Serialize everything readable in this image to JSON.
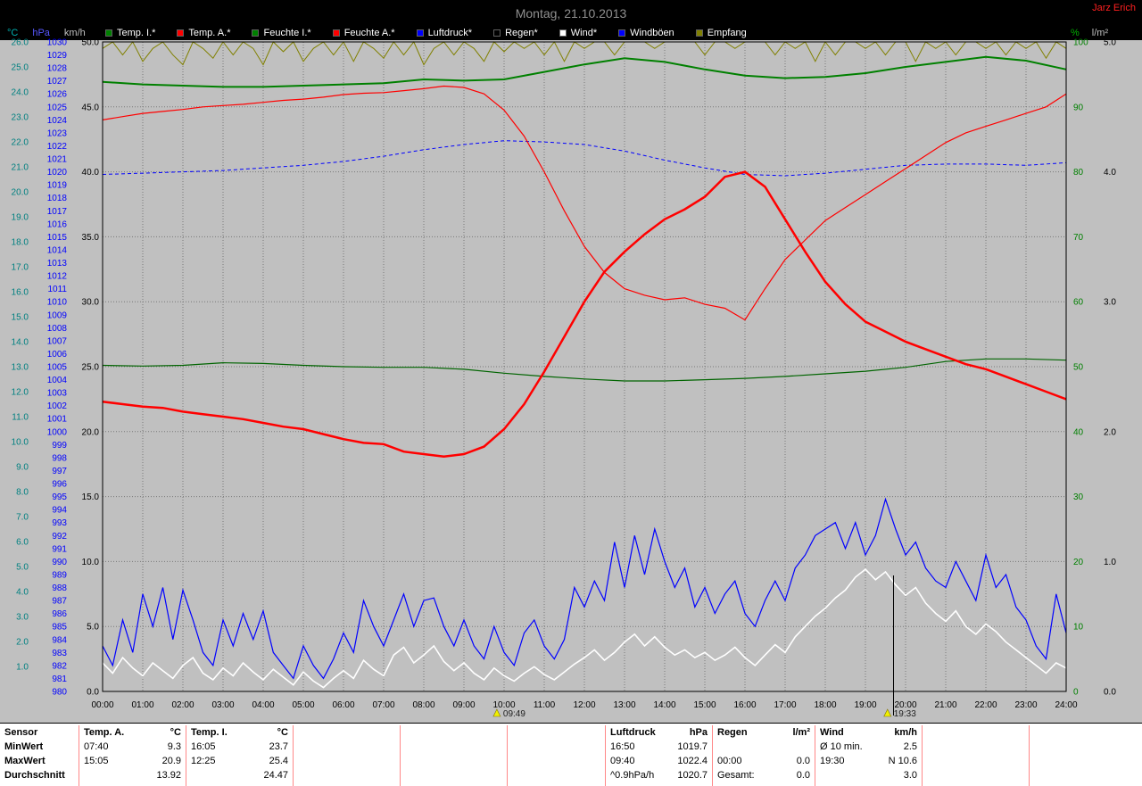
{
  "header": {
    "title": "Montag, 21.10.2013",
    "station": "Jarz Erich"
  },
  "legend": {
    "left_units": [
      {
        "label": "°C",
        "color": "#00b0b0"
      },
      {
        "label": "hPa",
        "color": "#5858ff"
      },
      {
        "label": "km/h",
        "color": "#c0c0c0"
      }
    ],
    "right_units": [
      {
        "label": "%",
        "color": "#00b000"
      },
      {
        "label": "l/m²",
        "color": "#c0c0c0"
      }
    ],
    "items": [
      {
        "label": "Temp. I.*",
        "color": "#008000"
      },
      {
        "label": "Temp. A.*",
        "color": "#ff0000"
      },
      {
        "label": "Feuchte I.*",
        "color": "#008000"
      },
      {
        "label": "Feuchte A.*",
        "color": "#ff0000"
      },
      {
        "label": "Luftdruck*",
        "color": "#0000ff"
      },
      {
        "label": "Regen*",
        "color": "#000000"
      },
      {
        "label": "Wind*",
        "color": "#ffffff"
      },
      {
        "label": "Windböen",
        "color": "#0000ff"
      },
      {
        "label": "Empfang",
        "color": "#808000"
      }
    ]
  },
  "chart_data": {
    "type": "line",
    "title": "Montag, 21.10.2013",
    "grid": true,
    "x": {
      "unit": "time",
      "min_hour": 0,
      "max_hour": 24,
      "tick_interval_hours": 1,
      "tick_labels": [
        "00:00",
        "01:00",
        "02:00",
        "03:00",
        "04:00",
        "05:00",
        "06:00",
        "07:00",
        "08:00",
        "09:00",
        "10:00",
        "11:00",
        "12:00",
        "13:00",
        "14:00",
        "15:00",
        "16:00",
        "17:00",
        "18:00",
        "19:00",
        "20:00",
        "21:00",
        "22:00",
        "23:00",
        "24:00"
      ]
    },
    "axes": {
      "temp_c": {
        "unit": "°C",
        "min": 0,
        "max": 26,
        "tick_min": 1,
        "tick_max": 26,
        "tick_step": 1,
        "color": "#008080"
      },
      "pressure_hpa": {
        "unit": "hPa",
        "min": 980,
        "max": 1030,
        "tick_min": 980,
        "tick_max": 1030,
        "tick_step": 1,
        "color": "#0000ff"
      },
      "wind_kmh": {
        "unit": "km/h",
        "min": 0,
        "max": 50,
        "tick_min": 0,
        "tick_max": 50,
        "tick_step": 5,
        "color": "#000000"
      },
      "humidity_pct": {
        "unit": "%",
        "min": 0,
        "max": 100,
        "tick_min": 0,
        "tick_max": 100,
        "tick_step": 10,
        "color": "#008000"
      },
      "rain_lm2": {
        "unit": "l/m²",
        "min": 0,
        "max": 5,
        "tick_min": 0,
        "tick_max": 5,
        "tick_step": 1,
        "color": "#000000"
      }
    },
    "series": [
      {
        "id": "empfang",
        "name": "Empfang",
        "axis": "humidity_pct",
        "color": "#808000",
        "width": 1,
        "start_hour": 0,
        "interval_min": 15,
        "values": [
          99,
          100,
          98,
          100,
          97,
          99,
          100,
          98,
          96.5,
          100,
          99,
          97.5,
          100,
          98,
          100,
          99,
          96.5,
          100,
          98.5,
          100,
          97,
          99,
          100,
          98,
          100,
          97,
          100,
          99,
          97.5,
          100,
          98,
          100,
          96.5,
          99,
          100,
          98,
          100,
          99,
          97,
          100,
          98.5,
          100,
          99,
          100,
          98,
          100,
          97,
          100,
          99,
          100,
          100,
          98,
          100,
          100,
          100,
          99,
          100,
          100,
          100,
          100,
          98,
          100,
          100,
          99,
          100,
          100,
          100,
          98,
          100,
          99,
          100,
          97,
          100,
          98,
          100,
          100,
          99,
          100,
          98,
          100,
          100,
          97,
          100,
          99,
          100,
          98,
          100,
          100,
          99,
          100,
          98,
          100,
          99,
          100,
          97.5,
          100,
          99
        ]
      },
      {
        "id": "luftdruck",
        "name": "Luftdruck",
        "axis": "pressure_hpa",
        "color": "#0000ff",
        "width": 1,
        "dash": "4,3",
        "start_hour": 0,
        "interval_min": 60,
        "values": [
          1019.8,
          1019.9,
          1020.0,
          1020.1,
          1020.3,
          1020.5,
          1020.8,
          1021.2,
          1021.7,
          1022.1,
          1022.4,
          1022.3,
          1022.1,
          1021.6,
          1020.9,
          1020.3,
          1019.8,
          1019.7,
          1019.9,
          1020.2,
          1020.5,
          1020.6,
          1020.6,
          1020.5,
          1020.7
        ]
      },
      {
        "id": "feuchte_i",
        "name": "Feuchte I.",
        "axis": "humidity_pct",
        "color": "#006400",
        "width": 1.2,
        "start_hour": 0,
        "interval_min": 60,
        "values": [
          50.2,
          50.1,
          50.2,
          50.6,
          50.5,
          50.2,
          50.0,
          49.9,
          49.9,
          49.6,
          49.0,
          48.5,
          48.1,
          47.8,
          47.8,
          48.0,
          48.2,
          48.5,
          48.9,
          49.3,
          49.9,
          50.8,
          51.2,
          51.2,
          51.0
        ]
      },
      {
        "id": "feuchte_a",
        "name": "Feuchte A.",
        "axis": "humidity_pct",
        "color": "#ff0000",
        "width": 1.2,
        "start_hour": 0,
        "interval_min": 30,
        "values": [
          88.0,
          88.5,
          89.0,
          89.3,
          89.6,
          90.0,
          90.2,
          90.4,
          90.7,
          91.0,
          91.2,
          91.5,
          91.9,
          92.1,
          92.2,
          92.5,
          92.8,
          93.2,
          93.0,
          92.0,
          89.5,
          85.5,
          80.0,
          74.0,
          68.5,
          64.5,
          62.0,
          61.0,
          60.3,
          60.6,
          59.6,
          59.0,
          57.2,
          62.0,
          66.5,
          69.5,
          72.5,
          74.5,
          76.5,
          78.5,
          80.5,
          82.5,
          84.5,
          86.0,
          87.0,
          88.0,
          89.0,
          90.0,
          92.0
        ]
      },
      {
        "id": "temp_i",
        "name": "Temp. I.",
        "axis": "temp_c",
        "color": "#008000",
        "width": 2,
        "start_hour": 0,
        "interval_min": 60,
        "values": [
          24.4,
          24.3,
          24.25,
          24.2,
          24.2,
          24.25,
          24.3,
          24.35,
          24.5,
          24.45,
          24.5,
          24.8,
          25.1,
          25.35,
          25.2,
          24.9,
          24.65,
          24.55,
          24.6,
          24.75,
          25.0,
          25.2,
          25.4,
          25.25,
          24.9
        ]
      },
      {
        "id": "temp_a",
        "name": "Temp. A.",
        "axis": "temp_c",
        "color": "#ff0000",
        "width": 2.5,
        "start_hour": 0,
        "interval_min": 30,
        "values": [
          11.6,
          11.5,
          11.4,
          11.35,
          11.2,
          11.1,
          11.0,
          10.9,
          10.75,
          10.6,
          10.5,
          10.3,
          10.1,
          9.95,
          9.9,
          9.6,
          9.5,
          9.4,
          9.5,
          9.8,
          10.5,
          11.5,
          12.8,
          14.2,
          15.6,
          16.8,
          17.6,
          18.3,
          18.9,
          19.3,
          19.8,
          20.6,
          20.8,
          20.2,
          18.9,
          17.6,
          16.4,
          15.5,
          14.8,
          14.4,
          14.0,
          13.7,
          13.4,
          13.1,
          12.9,
          12.6,
          12.3,
          12.0,
          11.7
        ]
      },
      {
        "id": "regen",
        "name": "Regen",
        "axis": "rain_lm2",
        "color": "#000000",
        "width": 1,
        "start_hour": 0,
        "interval_min": 60,
        "values": [
          0,
          0,
          0,
          0,
          0,
          0,
          0,
          0,
          0,
          0,
          0,
          0,
          0,
          0,
          0,
          0,
          0,
          0,
          0,
          0,
          0,
          0,
          0,
          0,
          0
        ]
      },
      {
        "id": "windboeen",
        "name": "Windböen",
        "axis": "wind_kmh",
        "color": "#0000ff",
        "width": 1.2,
        "start_hour": 0,
        "interval_min": 15,
        "values": [
          3.5,
          2.0,
          5.5,
          3.0,
          7.5,
          5.0,
          8.0,
          4.0,
          7.8,
          5.5,
          3.0,
          2.0,
          5.5,
          3.5,
          6.0,
          4.0,
          6.2,
          3.0,
          2.0,
          1.0,
          3.5,
          2.0,
          1.0,
          2.5,
          4.5,
          3.0,
          7.0,
          5.0,
          3.5,
          5.5,
          7.5,
          5.0,
          7.0,
          7.2,
          5.0,
          3.5,
          5.5,
          3.5,
          2.5,
          5.0,
          3.0,
          2.0,
          4.5,
          5.5,
          3.5,
          2.5,
          4.0,
          8.0,
          6.5,
          8.5,
          7.0,
          11.5,
          8.0,
          12.0,
          9.0,
          12.5,
          10.0,
          8.0,
          9.5,
          6.5,
          8.0,
          6.0,
          7.5,
          8.5,
          6.0,
          5.0,
          7.0,
          8.5,
          7.0,
          9.5,
          10.5,
          12.0,
          12.5,
          13.0,
          11.0,
          13.0,
          10.5,
          12.0,
          14.8,
          12.5,
          10.5,
          11.5,
          9.5,
          8.5,
          8.0,
          10.0,
          8.5,
          7.0,
          10.5,
          8.0,
          9.0,
          6.5,
          5.5,
          3.5,
          2.5,
          7.5,
          4.5
        ]
      },
      {
        "id": "wind",
        "name": "Wind",
        "axis": "wind_kmh",
        "color": "#ffffff",
        "width": 1.6,
        "start_hour": 0,
        "interval_min": 15,
        "values": [
          2.2,
          1.4,
          2.6,
          1.8,
          1.2,
          2.2,
          1.6,
          1.0,
          2.0,
          2.6,
          1.4,
          0.9,
          1.8,
          1.2,
          2.2,
          1.5,
          0.9,
          1.7,
          1.1,
          0.5,
          1.5,
          0.8,
          0.3,
          1.0,
          1.6,
          1.0,
          2.4,
          1.7,
          1.2,
          2.8,
          3.4,
          2.2,
          2.8,
          3.5,
          2.3,
          1.6,
          2.2,
          1.4,
          0.9,
          1.8,
          1.2,
          0.8,
          1.4,
          1.9,
          1.3,
          0.9,
          1.5,
          2.1,
          2.6,
          3.2,
          2.4,
          3.0,
          3.8,
          4.4,
          3.5,
          4.2,
          3.4,
          2.8,
          3.2,
          2.6,
          3.0,
          2.4,
          2.8,
          3.4,
          2.6,
          2.0,
          2.8,
          3.6,
          3.0,
          4.2,
          5.0,
          5.8,
          6.4,
          7.2,
          7.8,
          8.8,
          9.4,
          8.6,
          9.2,
          8.2,
          7.4,
          8.0,
          6.8,
          6.0,
          5.4,
          6.2,
          5.0,
          4.4,
          5.2,
          4.6,
          3.8,
          3.2,
          2.6,
          2.0,
          1.4,
          2.2,
          1.8
        ]
      }
    ],
    "markers": [
      {
        "label": "09:49",
        "hour": 9.82
      },
      {
        "label": "19:33",
        "hour": 19.55
      }
    ],
    "cursor_hour": 19.7
  },
  "table": {
    "row_labels": [
      "Sensor",
      "MinWert",
      "MaxWert",
      "Durchschnitt"
    ],
    "columns": [
      {
        "id": "temp_a",
        "header": "Temp. A.",
        "unit": "°C",
        "rows": [
          [
            "07:40",
            "9.3"
          ],
          [
            "15:05",
            "20.9"
          ],
          [
            "",
            "13.92"
          ]
        ]
      },
      {
        "id": "temp_i",
        "header": "Temp. I.",
        "unit": "°C",
        "rows": [
          [
            "16:05",
            "23.7"
          ],
          [
            "12:25",
            "25.4"
          ],
          [
            "",
            "24.47"
          ]
        ]
      },
      {
        "id": "empty1",
        "header": "",
        "unit": "",
        "rows": [
          [
            "",
            ""
          ],
          [
            "",
            ""
          ],
          [
            "",
            ""
          ]
        ]
      },
      {
        "id": "empty2",
        "header": "",
        "unit": "",
        "rows": [
          [
            "",
            ""
          ],
          [
            "",
            ""
          ],
          [
            "",
            ""
          ]
        ]
      },
      {
        "id": "empty3",
        "header": "",
        "unit": "",
        "rows": [
          [
            "",
            ""
          ],
          [
            "",
            ""
          ],
          [
            "",
            ""
          ]
        ]
      },
      {
        "id": "luftdruck",
        "header": "Luftdruck",
        "unit": "hPa",
        "rows": [
          [
            "16:50",
            "1019.7"
          ],
          [
            "09:40",
            "1022.4"
          ],
          [
            "^0.9hPa/h",
            "1020.7"
          ]
        ]
      },
      {
        "id": "regen",
        "header": "Regen",
        "unit": "l/m²",
        "rows": [
          [
            "",
            ""
          ],
          [
            "00:00",
            "0.0"
          ],
          [
            "Gesamt:",
            "0.0"
          ]
        ]
      },
      {
        "id": "wind",
        "header": "Wind",
        "unit": "km/h",
        "rows": [
          [
            "Ø 10 min.",
            "2.5"
          ],
          [
            "19:30",
            "N 10.6"
          ],
          [
            "",
            "3.0"
          ]
        ]
      },
      {
        "id": "empty4",
        "header": "",
        "unit": "",
        "rows": [
          [
            "",
            ""
          ],
          [
            "",
            ""
          ],
          [
            "",
            ""
          ]
        ]
      },
      {
        "id": "empty5",
        "header": "",
        "unit": "",
        "rows": [
          [
            "",
            ""
          ],
          [
            "",
            ""
          ],
          [
            "",
            ""
          ]
        ]
      }
    ]
  }
}
